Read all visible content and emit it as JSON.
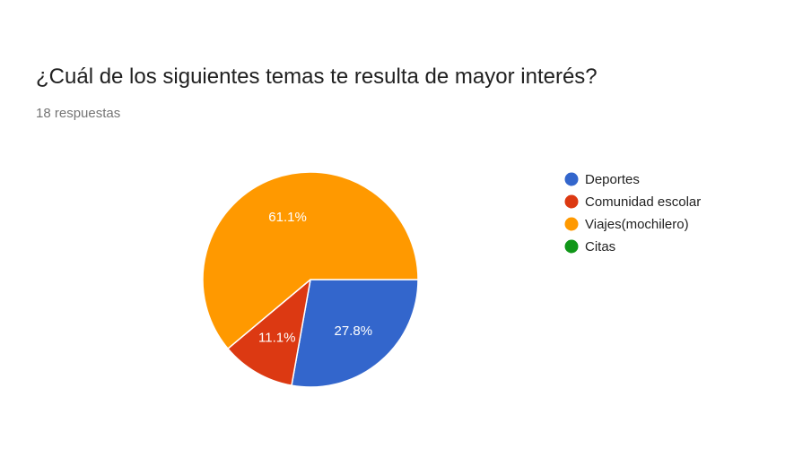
{
  "header": {
    "title": "¿Cuál de los siguientes temas te resulta de mayor interés?",
    "responses": "18 respuestas"
  },
  "chart_data": {
    "type": "pie",
    "categories": [
      "Deportes",
      "Comunidad escolar",
      "Viajes(mochilero)",
      "Citas"
    ],
    "values": [
      27.8,
      11.1,
      61.1,
      0
    ],
    "labels": [
      "27.8%",
      "11.1%",
      "61.1%",
      ""
    ],
    "colors": [
      "#3366cc",
      "#dc3912",
      "#ff9900",
      "#109618"
    ],
    "legend_position": "right"
  }
}
